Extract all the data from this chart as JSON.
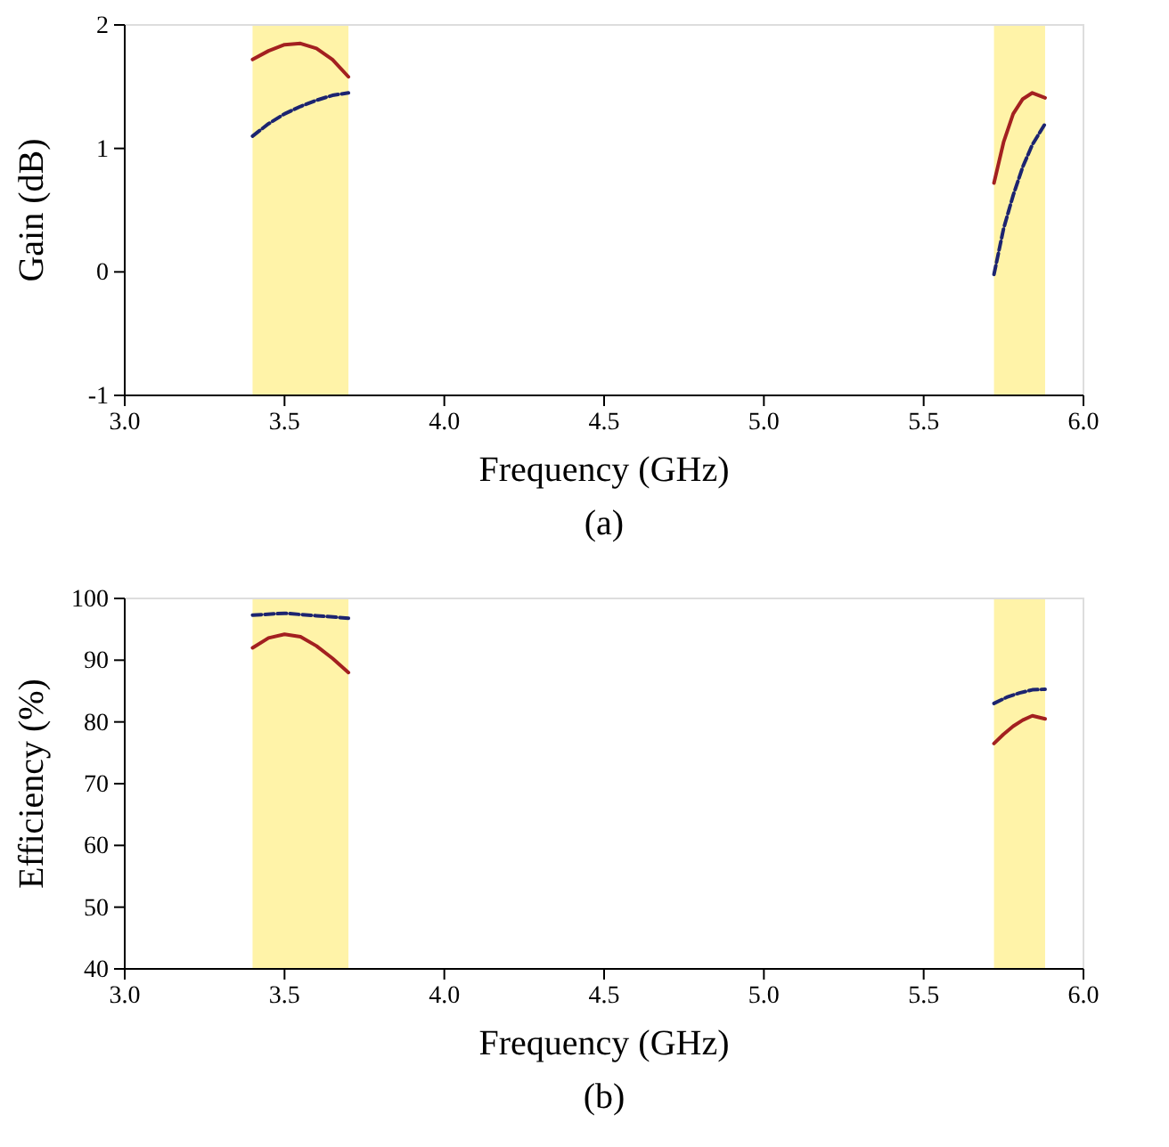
{
  "chart_data": [
    {
      "type": "line",
      "xlabel": "Frequency (GHz)",
      "ylabel": "Gain (dB)",
      "annotations": [
        "(a)"
      ],
      "xlim": [
        3,
        6
      ],
      "xticks": [
        {
          "value": 3,
          "label": "3.0"
        },
        {
          "value": 3.5,
          "label": "3.5"
        },
        {
          "value": 4,
          "label": "4.0"
        },
        {
          "value": 4.5,
          "label": "4.5"
        },
        {
          "value": 5,
          "label": "5.0"
        },
        {
          "value": 5.5,
          "label": "5.5"
        },
        {
          "value": 6,
          "label": "6.0"
        }
      ],
      "ylim": [
        -1,
        2
      ],
      "yticks": [
        -1,
        0,
        1,
        2
      ],
      "bands": [
        {
          "axis": "x",
          "from": 3.4,
          "to": 3.7,
          "color": "#fff3a8"
        },
        {
          "axis": "x",
          "from": 5.72,
          "to": 5.88,
          "color": "#fff3a8"
        }
      ],
      "series": [
        {
          "color": "#a32020",
          "line_style": "solid",
          "x": [
            3.4,
            3.45,
            3.5,
            3.55,
            3.6,
            3.65,
            3.7,
            null,
            5.72,
            5.75,
            5.78,
            5.81,
            5.84,
            5.88
          ],
          "values": [
            1.72,
            1.79,
            1.84,
            1.85,
            1.81,
            1.72,
            1.58,
            null,
            0.72,
            1.05,
            1.28,
            1.4,
            1.45,
            1.41
          ]
        },
        {
          "color": "#1c2470",
          "line_style": "dashed",
          "x": [
            3.4,
            3.45,
            3.5,
            3.55,
            3.6,
            3.65,
            3.7,
            null,
            5.72,
            5.75,
            5.78,
            5.81,
            5.84,
            5.88
          ],
          "values": [
            1.1,
            1.2,
            1.28,
            1.34,
            1.39,
            1.43,
            1.45,
            null,
            -0.02,
            0.35,
            0.62,
            0.85,
            1.03,
            1.2
          ]
        }
      ]
    },
    {
      "type": "line",
      "xlabel": "Frequency (GHz)",
      "ylabel": "Efficiency (%)",
      "annotations": [
        "(b)"
      ],
      "xlim": [
        3,
        6
      ],
      "xticks": [
        {
          "value": 3,
          "label": "3.0"
        },
        {
          "value": 3.5,
          "label": "3.5"
        },
        {
          "value": 4,
          "label": "4.0"
        },
        {
          "value": 4.5,
          "label": "4.5"
        },
        {
          "value": 5,
          "label": "5.0"
        },
        {
          "value": 5.5,
          "label": "5.5"
        },
        {
          "value": 6,
          "label": "6.0"
        }
      ],
      "ylim": [
        40,
        100
      ],
      "yticks": [
        40,
        50,
        60,
        70,
        80,
        90,
        100
      ],
      "bands": [
        {
          "axis": "x",
          "from": 3.4,
          "to": 3.7,
          "color": "#fff3a8"
        },
        {
          "axis": "x",
          "from": 5.72,
          "to": 5.88,
          "color": "#fff3a8"
        }
      ],
      "series": [
        {
          "color": "#a32020",
          "line_style": "solid",
          "x": [
            3.4,
            3.45,
            3.5,
            3.55,
            3.6,
            3.65,
            3.7,
            null,
            5.72,
            5.75,
            5.78,
            5.81,
            5.84,
            5.88
          ],
          "values": [
            92,
            93.6,
            94.2,
            93.8,
            92.3,
            90.3,
            88,
            null,
            76.5,
            78,
            79.3,
            80.3,
            81,
            80.5
          ]
        },
        {
          "color": "#1c2470",
          "line_style": "dashed",
          "x": [
            3.4,
            3.5,
            3.6,
            3.7,
            null,
            5.72,
            5.76,
            5.8,
            5.84,
            5.88
          ],
          "values": [
            97.3,
            97.6,
            97.2,
            96.8,
            null,
            83,
            84,
            84.7,
            85.2,
            85.3
          ]
        }
      ]
    }
  ]
}
